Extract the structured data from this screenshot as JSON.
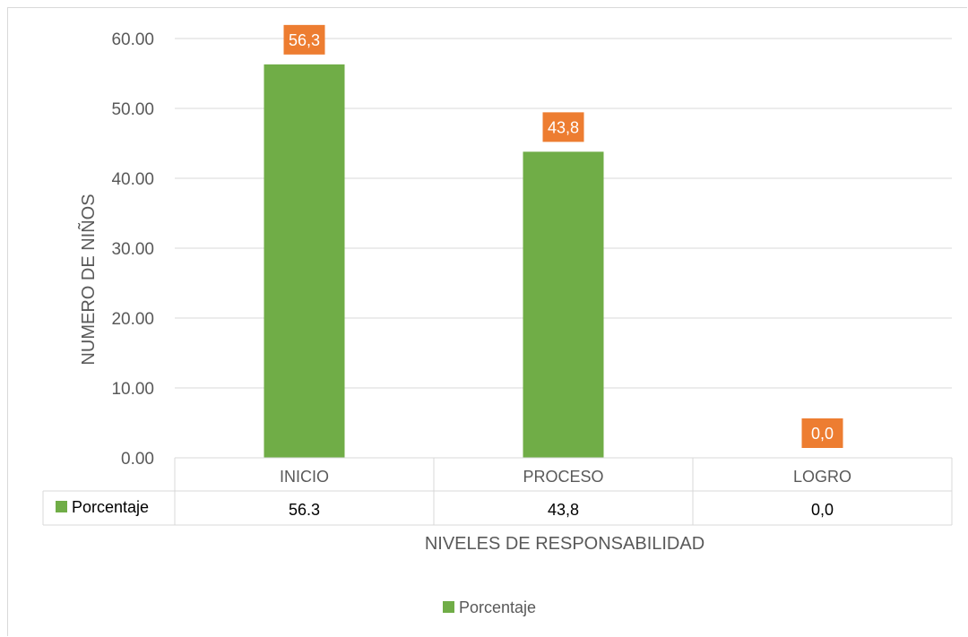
{
  "chart_data": {
    "type": "bar",
    "categories": [
      "INICIO",
      "PROCESO",
      "LOGRO"
    ],
    "series": [
      {
        "name": "Porcentaje",
        "values": [
          56.3,
          43.8,
          0.0
        ],
        "data_labels": [
          "56,3",
          "43,8",
          "0,0"
        ]
      }
    ],
    "ylabel": "NUMERO DE NIÑOS",
    "xlabel": "NIVELES DE RESPONSABILIDAD",
    "ylim": [
      0,
      60
    ],
    "yticks": [
      0,
      10,
      20,
      30,
      40,
      50,
      60
    ],
    "ytick_labels": [
      "0.00",
      "10.00",
      "20.00",
      "30.00",
      "40.00",
      "50.00",
      "60.00"
    ],
    "grid": true,
    "legend": {
      "position": "bottom",
      "entries": [
        "Porcentaje"
      ]
    },
    "data_table": {
      "row_label": "Porcentaje",
      "values": [
        "56.3",
        "43,8",
        "0,0"
      ]
    },
    "colors": {
      "bar": "#70ad47",
      "data_label_bg": "#ed7d31",
      "grid": "#d9d9d9",
      "text": "#595959"
    }
  }
}
